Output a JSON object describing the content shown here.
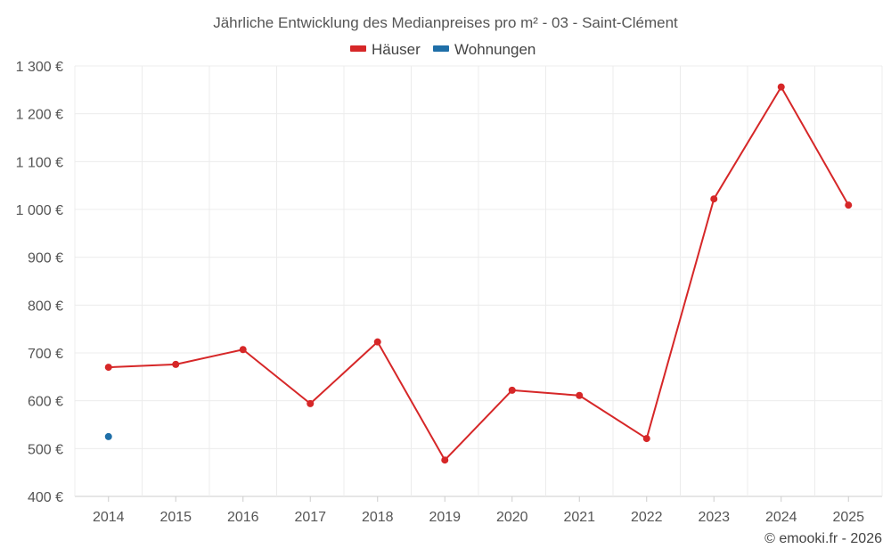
{
  "chart_data": {
    "type": "line",
    "title": "Jährliche Entwicklung des Medianpreises pro m² - 03 - Saint-Clément",
    "categories": [
      "2014",
      "2015",
      "2016",
      "2017",
      "2018",
      "2019",
      "2020",
      "2021",
      "2022",
      "2023",
      "2024",
      "2025"
    ],
    "series": [
      {
        "name": "Häuser",
        "color": "#d62728",
        "values": [
          670,
          676,
          707,
          594,
          723,
          476,
          622,
          611,
          521,
          1022,
          1256,
          1009
        ]
      },
      {
        "name": "Wohnungen",
        "color": "#1f6fa8",
        "values": [
          525,
          null,
          null,
          null,
          null,
          null,
          null,
          null,
          null,
          null,
          null,
          null
        ]
      }
    ],
    "ylim": [
      400,
      1300
    ],
    "yticks": [
      400,
      500,
      600,
      700,
      800,
      900,
      1000,
      1100,
      1200,
      1300
    ],
    "ytick_labels": [
      "400 €",
      "500 €",
      "600 €",
      "700 €",
      "800 €",
      "900 €",
      "1 000 €",
      "1 100 €",
      "1 200 €",
      "1 300 €"
    ],
    "xlabel": "",
    "ylabel": "",
    "grid": true,
    "legend_position": "top-center"
  },
  "credit": "© emooki.fr - 2026"
}
